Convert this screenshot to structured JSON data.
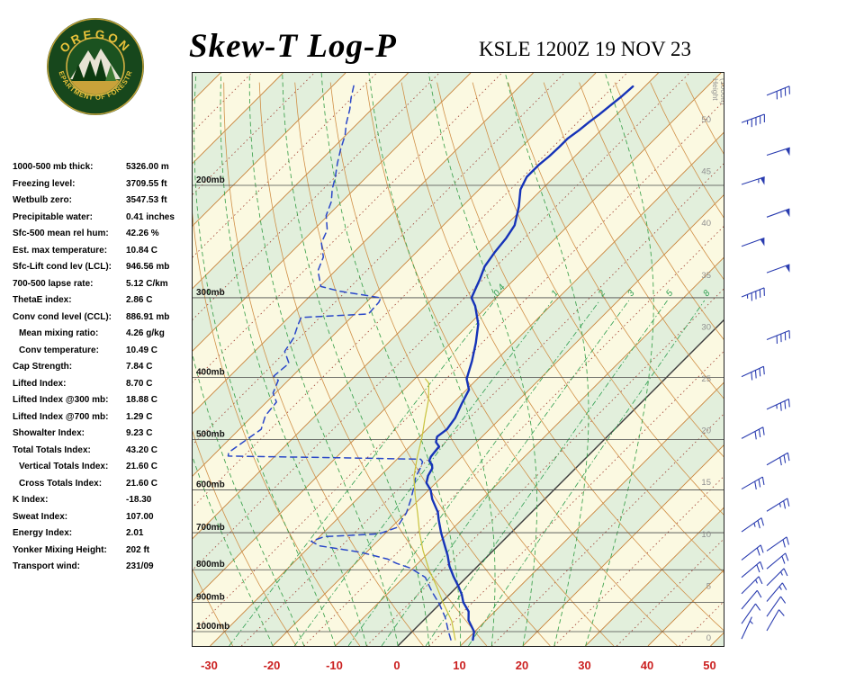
{
  "header": {
    "title": "Skew-T Log-P",
    "station_line": "KSLE 1200Z 19 NOV 23",
    "logo": {
      "arc_top": "OREGON",
      "arc_bottom": "DEPARTMENT OF FORESTRY"
    }
  },
  "stats": [
    {
      "label": "1000-500 mb thick:",
      "value": "5326.00 m",
      "indent": false
    },
    {
      "label": "Freezing level:",
      "value": "3709.55 ft",
      "indent": false
    },
    {
      "label": "Wetbulb zero:",
      "value": "3547.53 ft",
      "indent": false
    },
    {
      "label": "Precipitable water:",
      "value": "0.41 inches",
      "indent": false
    },
    {
      "label": "Sfc-500 mean rel hum:",
      "value": "42.26 %",
      "indent": false
    },
    {
      "label": "Est. max temperature:",
      "value": "10.84 C",
      "indent": false
    },
    {
      "label": "Sfc-Lift cond lev (LCL):",
      "value": "946.56 mb",
      "indent": false
    },
    {
      "label": "700-500 lapse rate:",
      "value": "5.12 C/km",
      "indent": false
    },
    {
      "label": "ThetaE index:",
      "value": "2.86 C",
      "indent": false
    },
    {
      "label": "Conv cond level (CCL):",
      "value": "886.91 mb",
      "indent": false
    },
    {
      "label": "Mean mixing ratio:",
      "value": "4.26 g/kg",
      "indent": true
    },
    {
      "label": "Conv temperature:",
      "value": "10.49 C",
      "indent": true
    },
    {
      "label": "Cap Strength:",
      "value": "7.84 C",
      "indent": false
    },
    {
      "label": "Lifted Index:",
      "value": "8.70 C",
      "indent": false
    },
    {
      "label": "Lifted Index @300 mb:",
      "value": "18.88 C",
      "indent": false
    },
    {
      "label": "Lifted Index @700 mb:",
      "value": "1.29 C",
      "indent": false
    },
    {
      "label": "Showalter Index:",
      "value": "9.23 C",
      "indent": false
    },
    {
      "label": "Total Totals Index:",
      "value": "43.20 C",
      "indent": false
    },
    {
      "label": "Vertical Totals Index:",
      "value": "21.60 C",
      "indent": true
    },
    {
      "label": "Cross Totals Index:",
      "value": "21.60 C",
      "indent": true
    },
    {
      "label": "K Index:",
      "value": "-18.30",
      "indent": false
    },
    {
      "label": "Sweat Index:",
      "value": "107.00",
      "indent": false
    },
    {
      "label": "Energy Index:",
      "value": "2.01",
      "indent": false
    },
    {
      "label": "Yonker Mixing Height:",
      "value": "202 ft",
      "indent": false
    },
    {
      "label": "Transport wind:",
      "value": "231/09",
      "indent": false
    }
  ],
  "chart_data": {
    "type": "line",
    "title": "Skew-T Log-P sounding KSLE 1200Z 19 NOV 23",
    "x_axis": {
      "label": "Temperature (C)",
      "ticks": [
        -30,
        -20,
        -10,
        0,
        10,
        20,
        30,
        40,
        50
      ]
    },
    "pressure_ticks": [
      200,
      300,
      400,
      500,
      600,
      700,
      800,
      900,
      1000
    ],
    "pressure_unit": "mb",
    "pressure_range": [
      133,
      1053
    ],
    "height_axis": {
      "title_lines": [
        "Height",
        "(1000ft)"
      ],
      "ticks": [
        50,
        45,
        40,
        35,
        30,
        25,
        20,
        15,
        10,
        5,
        0
      ]
    },
    "mixing_ratio_lines": [
      0.4,
      1,
      2,
      3,
      5,
      8
    ],
    "colors": {
      "band_cream": "#fbf9e1",
      "band_green": "#e2efdc",
      "isotherm": "#c8823a",
      "isotherm_minor": "#a03c30",
      "zero_isotherm": "#3c3c3c",
      "dry_adiabat": "#d09048",
      "moist_adiabat": "#3aa04a",
      "mixing_ratio": "#2e9e50",
      "pressure_line": "#4a4a4a",
      "height_text": "#8f8f8f",
      "x_tick": "#cb2020",
      "wind": "#2a3cb0"
    },
    "series": [
      {
        "name": "temperature",
        "color": "#1633b8",
        "width": 2.4,
        "dash": "",
        "points": [
          [
            1030,
            11
          ],
          [
            1000,
            9.9
          ],
          [
            960,
            7.2
          ],
          [
            930,
            5.8
          ],
          [
            900,
            3.5
          ],
          [
            875,
            2
          ],
          [
            850,
            0.2
          ],
          [
            820,
            -2.2
          ],
          [
            790,
            -4.5
          ],
          [
            760,
            -6.5
          ],
          [
            730,
            -8.8
          ],
          [
            700,
            -11.2
          ],
          [
            670,
            -13.5
          ],
          [
            650,
            -15
          ],
          [
            620,
            -18
          ],
          [
            600,
            -19.7
          ],
          [
            585,
            -21.5
          ],
          [
            570,
            -22.4
          ],
          [
            555,
            -22.9
          ],
          [
            548,
            -23.5
          ],
          [
            540,
            -24.6
          ],
          [
            532,
            -25
          ],
          [
            520,
            -25.2
          ],
          [
            513,
            -25.3
          ],
          [
            505,
            -26.5
          ],
          [
            495,
            -27.2
          ],
          [
            482,
            -26.8
          ],
          [
            463,
            -27.3
          ],
          [
            440,
            -28.5
          ],
          [
            418,
            -29.6
          ],
          [
            402,
            -31.7
          ],
          [
            377,
            -33.7
          ],
          [
            353,
            -36
          ],
          [
            330,
            -38.6
          ],
          [
            309,
            -42
          ],
          [
            300,
            -43.9
          ],
          [
            281,
            -45.5
          ],
          [
            268,
            -46.8
          ],
          [
            254,
            -47.5
          ],
          [
            242,
            -47.9
          ],
          [
            231,
            -48.6
          ],
          [
            216,
            -50.9
          ],
          [
            203,
            -53.4
          ],
          [
            194,
            -54.4
          ],
          [
            186,
            -54.4
          ],
          [
            180,
            -54.1
          ],
          [
            174,
            -54
          ],
          [
            169,
            -54
          ],
          [
            164,
            -53.5
          ],
          [
            159,
            -53.2
          ],
          [
            155,
            -52.8
          ],
          [
            149,
            -52.4
          ],
          [
            145,
            -52.1
          ],
          [
            140,
            -51.9
          ]
        ]
      },
      {
        "name": "dewpoint",
        "color": "#2a47c8",
        "width": 1.5,
        "dash": "7 5",
        "points": [
          [
            1030,
            7.5
          ],
          [
            1000,
            5.8
          ],
          [
            950,
            3
          ],
          [
            905,
            -0.1
          ],
          [
            865,
            -3.3
          ],
          [
            822,
            -6.6
          ],
          [
            795,
            -10.5
          ],
          [
            782,
            -13.4
          ],
          [
            770,
            -15.5
          ],
          [
            751,
            -21
          ],
          [
            734,
            -28.5
          ],
          [
            722,
            -30.6
          ],
          [
            710,
            -29.2
          ],
          [
            703,
            -21
          ],
          [
            687,
            -19.1
          ],
          [
            652,
            -19.9
          ],
          [
            622,
            -21.3
          ],
          [
            598,
            -22.6
          ],
          [
            572,
            -24.2
          ],
          [
            553,
            -24.9
          ],
          [
            542,
            -25.5
          ],
          [
            537,
            -26.2
          ],
          [
            534,
            -40
          ],
          [
            531,
            -57.5
          ],
          [
            524,
            -58
          ],
          [
            482,
            -56.5
          ],
          [
            459,
            -58
          ],
          [
            437,
            -58.4
          ],
          [
            423,
            -60.4
          ],
          [
            404,
            -61.6
          ],
          [
            398,
            -63
          ],
          [
            380,
            -62.6
          ],
          [
            364,
            -65.2
          ],
          [
            347,
            -65.9
          ],
          [
            331,
            -67.3
          ],
          [
            322,
            -68
          ],
          [
            318,
            -57.8
          ],
          [
            305,
            -58
          ],
          [
            300,
            -58.4
          ],
          [
            293,
            -66
          ],
          [
            288,
            -69.8
          ],
          [
            272,
            -72.8
          ],
          [
            259,
            -74.1
          ],
          [
            246,
            -76.7
          ],
          [
            235,
            -77.8
          ],
          [
            223,
            -80.3
          ],
          [
            212,
            -81.7
          ],
          [
            203,
            -83.5
          ],
          [
            194,
            -85
          ],
          [
            185,
            -86.8
          ],
          [
            176,
            -88.5
          ],
          [
            167,
            -90.1
          ],
          [
            160,
            -91.8
          ],
          [
            152,
            -93.5
          ],
          [
            146,
            -95.1
          ],
          [
            139,
            -96.8
          ]
        ]
      },
      {
        "name": "wetbulb",
        "color": "#c8c23c",
        "width": 1.2,
        "dash": "",
        "points": [
          [
            1030,
            8.2
          ],
          [
            962,
            4.6
          ],
          [
            905,
            0.6
          ],
          [
            850,
            -3.3
          ],
          [
            800,
            -7.2
          ],
          [
            747,
            -11.2
          ],
          [
            702,
            -14.5
          ],
          [
            652,
            -18.1
          ],
          [
            612,
            -21.3
          ],
          [
            572,
            -24.5
          ],
          [
            533,
            -27.1
          ],
          [
            495,
            -29.6
          ],
          [
            463,
            -32.1
          ],
          [
            433,
            -34.5
          ],
          [
            408,
            -37.1
          ],
          [
            402,
            -38.3
          ]
        ]
      }
    ],
    "winds": [
      {
        "p": 1030,
        "dir": 205,
        "spd": 5
      },
      {
        "p": 1000,
        "dir": 210,
        "spd": 8
      },
      {
        "p": 975,
        "dir": 215,
        "spd": 10
      },
      {
        "p": 950,
        "dir": 215,
        "spd": 10
      },
      {
        "p": 925,
        "dir": 220,
        "spd": 12
      },
      {
        "p": 900,
        "dir": 220,
        "spd": 15
      },
      {
        "p": 875,
        "dir": 225,
        "spd": 15
      },
      {
        "p": 850,
        "dir": 225,
        "spd": 15
      },
      {
        "p": 825,
        "dir": 230,
        "spd": 18
      },
      {
        "p": 800,
        "dir": 230,
        "spd": 20
      },
      {
        "p": 775,
        "dir": 232,
        "spd": 20
      },
      {
        "p": 750,
        "dir": 235,
        "spd": 22
      },
      {
        "p": 700,
        "dir": 235,
        "spd": 25
      },
      {
        "p": 650,
        "dir": 238,
        "spd": 25
      },
      {
        "p": 600,
        "dir": 240,
        "spd": 28
      },
      {
        "p": 550,
        "dir": 240,
        "spd": 30
      },
      {
        "p": 500,
        "dir": 242,
        "spd": 32
      },
      {
        "p": 450,
        "dir": 245,
        "spd": 35
      },
      {
        "p": 400,
        "dir": 245,
        "spd": 38
      },
      {
        "p": 350,
        "dir": 248,
        "spd": 42
      },
      {
        "p": 300,
        "dir": 248,
        "spd": 45
      },
      {
        "p": 275,
        "dir": 250,
        "spd": 48
      },
      {
        "p": 250,
        "dir": 250,
        "spd": 50
      },
      {
        "p": 225,
        "dir": 250,
        "spd": 52
      },
      {
        "p": 200,
        "dir": 252,
        "spd": 55
      },
      {
        "p": 180,
        "dir": 252,
        "spd": 50
      },
      {
        "p": 160,
        "dir": 250,
        "spd": 45
      },
      {
        "p": 145,
        "dir": 248,
        "spd": 40
      }
    ]
  }
}
